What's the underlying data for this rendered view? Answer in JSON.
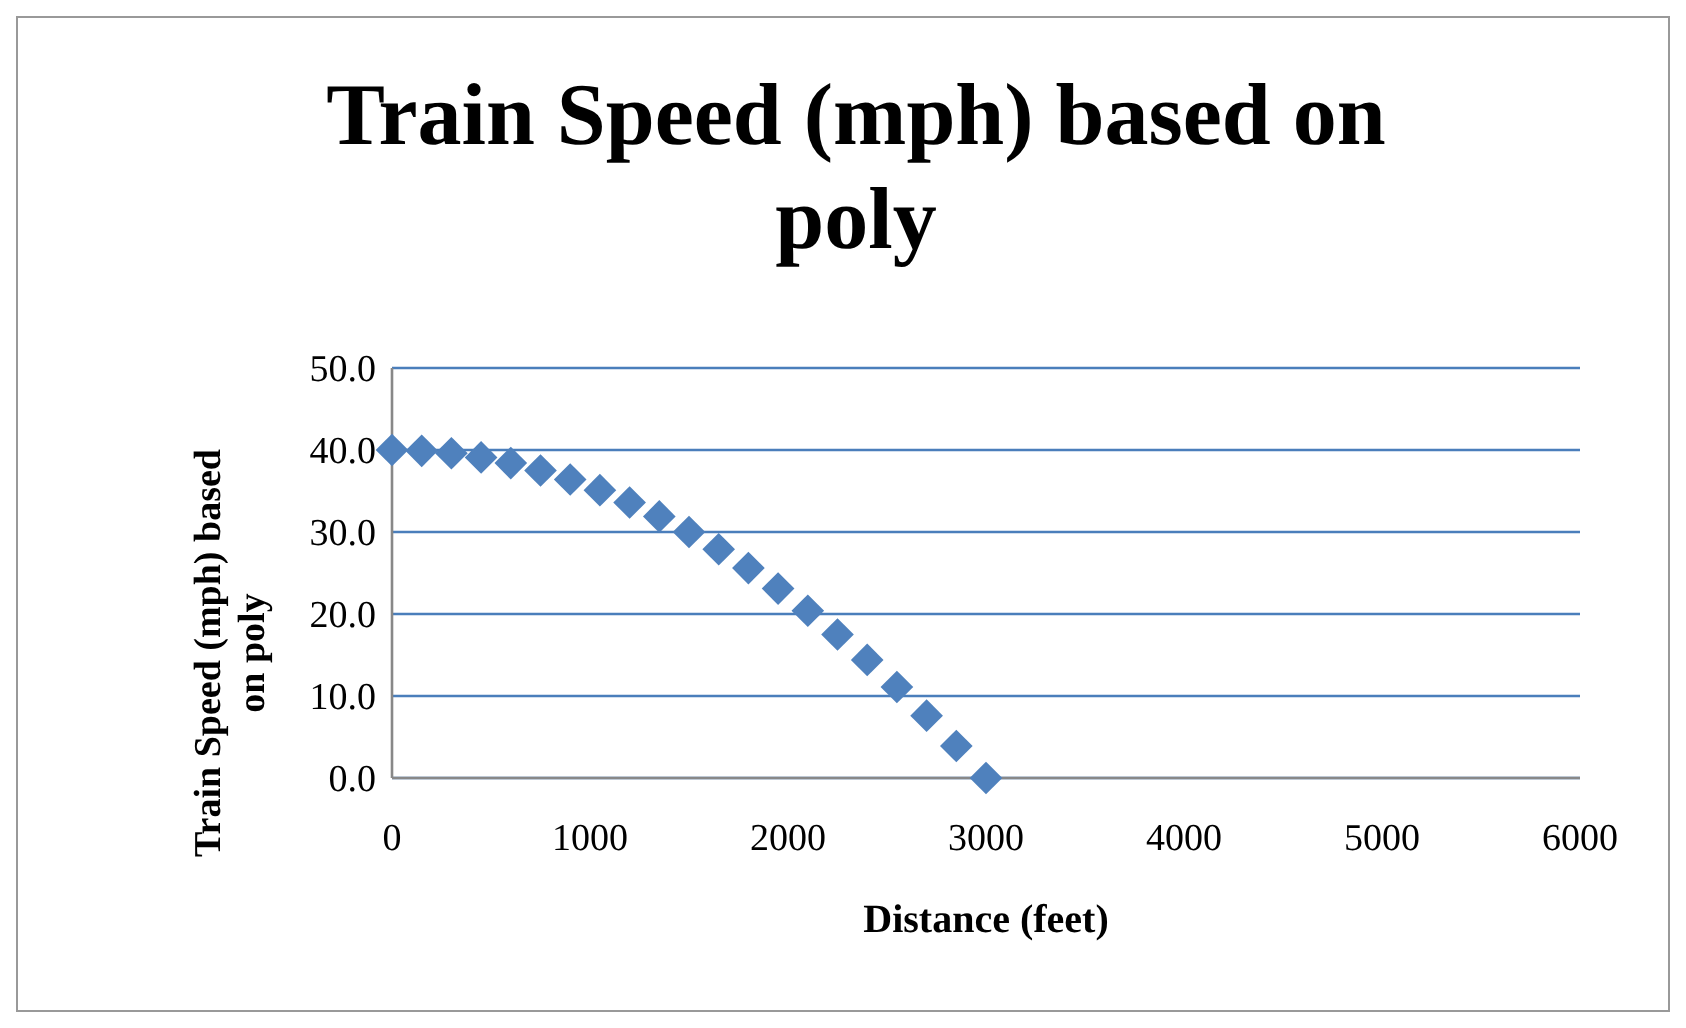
{
  "chart_data": {
    "type": "scatter",
    "title": "Train Speed (mph) based on poly",
    "xlabel": "Distance (feet)",
    "ylabel": "Train Speed (mph) based on poly",
    "x": [
      0,
      150,
      300,
      450,
      600,
      750,
      900,
      1050,
      1200,
      1350,
      1500,
      1650,
      1800,
      1950,
      2100,
      2250,
      2400,
      2550,
      2700,
      2850,
      3000
    ],
    "series": [
      {
        "color": "#4f81bd",
        "values": [
          40,
          39.9,
          39.6,
          39.1,
          38.4,
          37.5,
          36.4,
          35.1,
          33.6,
          31.9,
          30,
          27.9,
          25.6,
          23.1,
          20.4,
          17.5,
          14.4,
          11.1,
          7.6,
          3.9,
          0
        ]
      }
    ],
    "xlim": [
      0,
      6000
    ],
    "xticks": [
      0,
      1000,
      2000,
      3000,
      4000,
      5000,
      6000
    ],
    "ylim": [
      0,
      50
    ],
    "yticks": [
      {
        "value": 0,
        "label": "0.0"
      },
      {
        "value": 10,
        "label": "10.0"
      },
      {
        "value": 20,
        "label": "20.0"
      },
      {
        "value": 30,
        "label": "30.0"
      },
      {
        "value": 40,
        "label": "40.0"
      },
      {
        "value": 50,
        "label": "50.0"
      }
    ],
    "grid": "y",
    "marker": "diamond"
  }
}
